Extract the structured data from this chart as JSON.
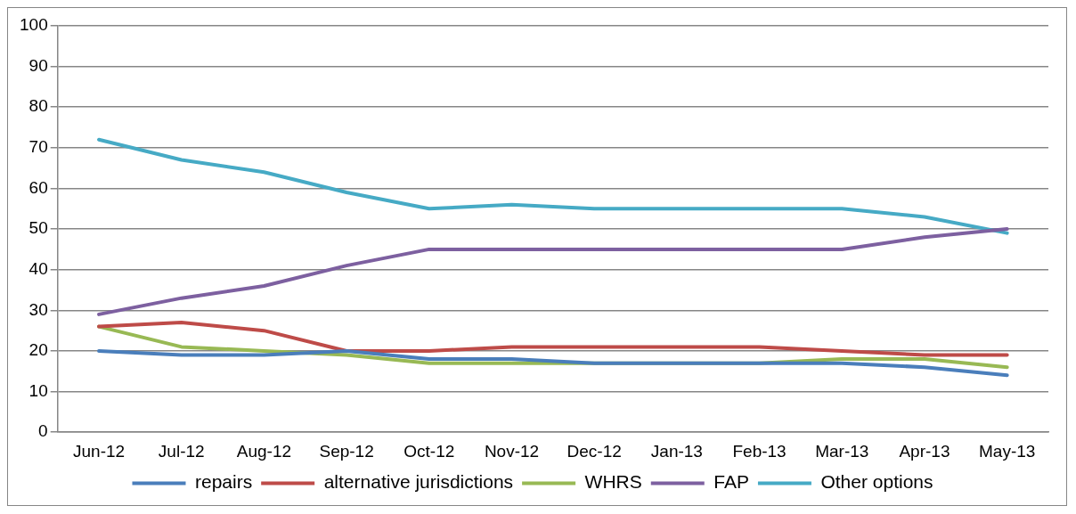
{
  "chart_data": {
    "type": "line",
    "categories": [
      "Jun-12",
      "Jul-12",
      "Aug-12",
      "Sep-12",
      "Oct-12",
      "Nov-12",
      "Dec-12",
      "Jan-13",
      "Feb-13",
      "Mar-13",
      "Apr-13",
      "May-13"
    ],
    "series": [
      {
        "name": "repairs",
        "color": "#4a7ebb",
        "values": [
          20,
          19,
          19,
          20,
          18,
          18,
          17,
          17,
          17,
          17,
          16,
          14
        ]
      },
      {
        "name": "alternative jurisdictions",
        "color": "#be4b48",
        "values": [
          26,
          27,
          25,
          20,
          20,
          21,
          21,
          21,
          21,
          20,
          19,
          19
        ]
      },
      {
        "name": "WHRS",
        "color": "#98b954",
        "values": [
          26,
          21,
          20,
          19,
          17,
          17,
          17,
          17,
          17,
          18,
          18,
          16
        ]
      },
      {
        "name": "FAP",
        "color": "#7d60a0",
        "values": [
          29,
          33,
          36,
          41,
          45,
          45,
          45,
          45,
          45,
          45,
          48,
          50
        ]
      },
      {
        "name": "Other options",
        "color": "#46aac5",
        "values": [
          72,
          67,
          64,
          59,
          55,
          56,
          55,
          55,
          55,
          55,
          53,
          49
        ]
      }
    ],
    "ylim": [
      0,
      100
    ],
    "yticks": [
      0,
      10,
      20,
      30,
      40,
      50,
      60,
      70,
      80,
      90,
      100
    ],
    "grid": "y",
    "legend": "bottom",
    "marker": "none",
    "line_style": "solid"
  }
}
